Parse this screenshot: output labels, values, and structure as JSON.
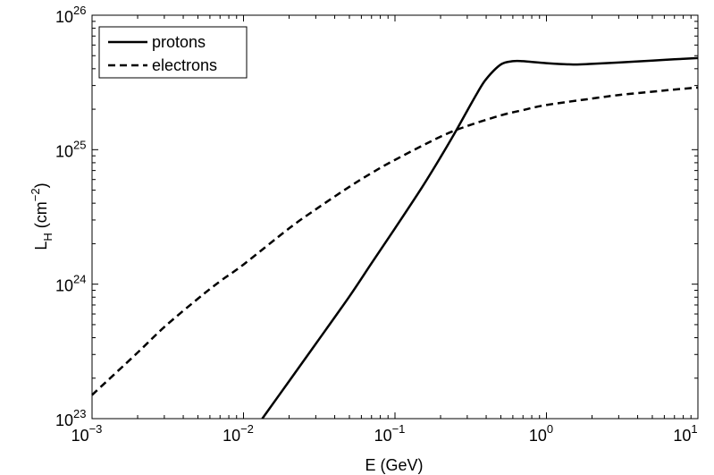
{
  "chart_data": {
    "type": "line",
    "xscale": "log",
    "yscale": "log",
    "xlim": [
      0.001,
      10
    ],
    "ylim": [
      1e+23,
      1e+26
    ],
    "x_ticks": [
      {
        "base": "10",
        "exp": "−3"
      },
      {
        "base": "10",
        "exp": "−2"
      },
      {
        "base": "10",
        "exp": "−1"
      },
      {
        "base": "10",
        "exp": "0"
      },
      {
        "base": "10",
        "exp": "1"
      }
    ],
    "y_ticks": [
      {
        "base": "10",
        "exp": "23"
      },
      {
        "base": "10",
        "exp": "24"
      },
      {
        "base": "10",
        "exp": "25"
      },
      {
        "base": "10",
        "exp": "26"
      }
    ],
    "xlabel": "E (GeV)",
    "ylabel": {
      "main": "L",
      "sub": "H",
      "unit_open": " (cm",
      "unit_exp": "−2",
      "unit_close": ")"
    },
    "grid": false,
    "legend_position": "top-left",
    "series": [
      {
        "name": "protons",
        "style": "solid",
        "color": "#000000",
        "x": [
          0.0133,
          0.02,
          0.03,
          0.05,
          0.07,
          0.1,
          0.15,
          0.2,
          0.25,
          0.3,
          0.35,
          0.4,
          0.5,
          0.6,
          0.7,
          1.0,
          1.5,
          2.0,
          3.0,
          5.0,
          7.0,
          10.0
        ],
        "y": [
          1e+23,
          1.9e+23,
          3.6e+23,
          8.1e+23,
          1.43e+24,
          2.6e+24,
          5.2e+24,
          8.8e+24,
          1.35e+25,
          1.95e+25,
          2.65e+25,
          3.35e+25,
          4.3e+25,
          4.55e+25,
          4.55e+25,
          4.4e+25,
          4.3e+25,
          4.35e+25,
          4.45e+25,
          4.6e+25,
          4.7e+25,
          4.8e+25
        ]
      },
      {
        "name": "electrons",
        "style": "dashed",
        "color": "#000000",
        "x": [
          0.001,
          0.002,
          0.003,
          0.005,
          0.007,
          0.01,
          0.02,
          0.03,
          0.05,
          0.07,
          0.1,
          0.2,
          0.3,
          0.5,
          0.7,
          1.0,
          2.0,
          3.0,
          5.0,
          7.0,
          10.0
        ],
        "y": [
          1.5e+23,
          3.1e+23,
          4.8e+23,
          7.8e+23,
          1.05e+24,
          1.4e+24,
          2.6e+24,
          3.6e+24,
          5.3e+24,
          6.7e+24,
          8.4e+24,
          1.25e+25,
          1.5e+25,
          1.8e+25,
          1.97e+25,
          2.15e+25,
          2.4e+25,
          2.55e+25,
          2.7e+25,
          2.8e+25,
          2.9e+25
        ]
      }
    ]
  }
}
